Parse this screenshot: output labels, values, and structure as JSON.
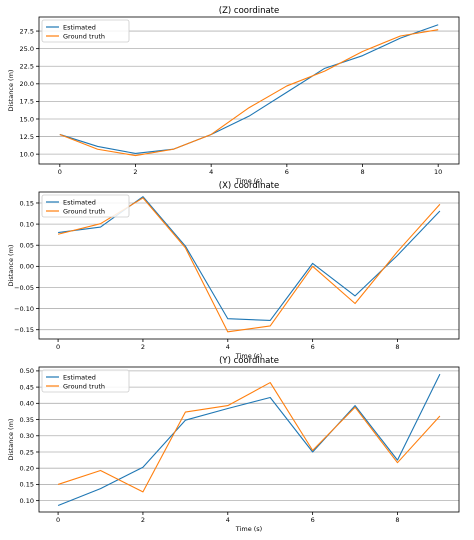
{
  "chart_data": [
    {
      "type": "line",
      "title": "(Z) coordinate",
      "xlabel": "Time (s)",
      "ylabel": "Distance (m)",
      "xlim": [
        -0.55,
        10.55
      ],
      "ylim": [
        8.6,
        29.5
      ],
      "xticks": [
        0,
        2,
        4,
        6,
        8,
        10
      ],
      "xtick_labels": [
        "0",
        "2",
        "4",
        "6",
        "8",
        "10"
      ],
      "yticks": [
        10.0,
        12.5,
        15.0,
        17.5,
        20.0,
        22.5,
        25.0,
        27.5
      ],
      "ytick_labels": [
        "10.0",
        "12.5",
        "15.0",
        "17.5",
        "20.0",
        "22.5",
        "25.0",
        "27.5"
      ],
      "grid": true,
      "legend_position": "top-left",
      "x": [
        0,
        1,
        2,
        3,
        4,
        5,
        6,
        7,
        8,
        9,
        10
      ],
      "series": [
        {
          "name": "Estimated",
          "color": "#1f77b4",
          "values": [
            12.8,
            11.1,
            10.1,
            10.7,
            12.8,
            15.4,
            18.8,
            22.2,
            24.0,
            26.5,
            28.4
          ]
        },
        {
          "name": "Ground truth",
          "color": "#ff7f0e",
          "values": [
            12.8,
            10.7,
            9.8,
            10.7,
            12.8,
            16.6,
            19.7,
            21.8,
            24.6,
            26.8,
            27.7
          ]
        }
      ]
    },
    {
      "type": "line",
      "title": "(X) coordinate",
      "xlabel": "Time (s)",
      "ylabel": "Distance (m)",
      "xlim": [
        -0.45,
        9.45
      ],
      "ylim": [
        -0.172,
        0.176
      ],
      "xticks": [
        0,
        2,
        4,
        6,
        8
      ],
      "xtick_labels": [
        "0",
        "2",
        "4",
        "6",
        "8"
      ],
      "yticks": [
        -0.15,
        -0.1,
        -0.05,
        0.0,
        0.05,
        0.1,
        0.15
      ],
      "ytick_labels": [
        "−0.15",
        "−0.10",
        "−0.05",
        "0.00",
        "0.05",
        "0.10",
        "0.15"
      ],
      "grid": true,
      "legend_position": "top-left",
      "x": [
        0,
        1,
        2,
        3,
        4,
        5,
        6,
        7,
        8,
        9
      ],
      "series": [
        {
          "name": "Estimated",
          "color": "#1f77b4",
          "values": [
            0.08,
            0.093,
            0.165,
            0.048,
            -0.124,
            -0.128,
            0.007,
            -0.07,
            0.026,
            0.131
          ]
        },
        {
          "name": "Ground truth",
          "color": "#ff7f0e",
          "values": [
            0.076,
            0.101,
            0.162,
            0.044,
            -0.155,
            -0.141,
            0.0,
            -0.088,
            0.035,
            0.147
          ]
        }
      ]
    },
    {
      "type": "line",
      "title": "(Y) coordinate",
      "xlabel": "Time (s)",
      "ylabel": "Distance (m)",
      "xlim": [
        -0.45,
        9.45
      ],
      "ylim": [
        0.065,
        0.512
      ],
      "xticks": [
        0,
        2,
        4,
        6,
        8
      ],
      "xtick_labels": [
        "0",
        "2",
        "4",
        "6",
        "8"
      ],
      "yticks": [
        0.1,
        0.15,
        0.2,
        0.25,
        0.3,
        0.35,
        0.4,
        0.45,
        0.5
      ],
      "ytick_labels": [
        "0.10",
        "0.15",
        "0.20",
        "0.25",
        "0.30",
        "0.35",
        "0.40",
        "0.45",
        "0.50"
      ],
      "grid": true,
      "legend_position": "top-left",
      "x": [
        0,
        1,
        2,
        3,
        4,
        5,
        6,
        7,
        8,
        9
      ],
      "series": [
        {
          "name": "Estimated",
          "color": "#1f77b4",
          "values": [
            0.085,
            0.137,
            0.203,
            0.348,
            0.384,
            0.418,
            0.25,
            0.393,
            0.225,
            0.49
          ]
        },
        {
          "name": "Ground truth",
          "color": "#ff7f0e",
          "values": [
            0.15,
            0.193,
            0.127,
            0.373,
            0.393,
            0.464,
            0.255,
            0.388,
            0.217,
            0.361
          ]
        }
      ]
    }
  ]
}
